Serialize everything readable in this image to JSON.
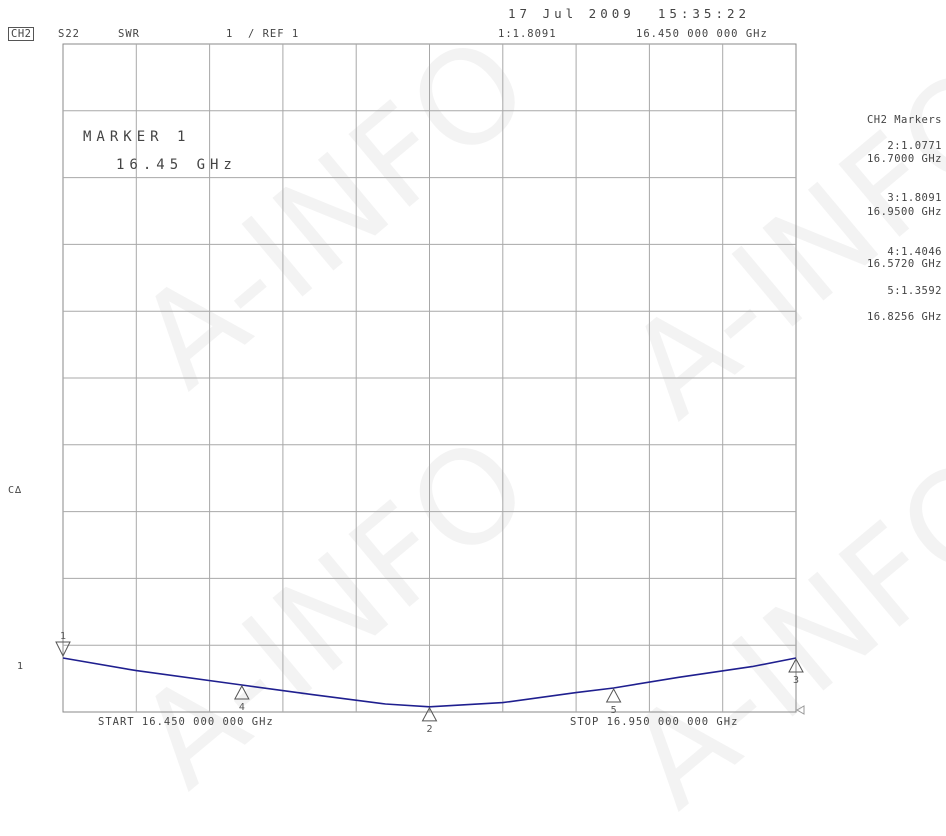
{
  "header": {
    "channel": "CH2",
    "param": "S22",
    "format": "SWR",
    "scale": "1  / REF 1",
    "datetime": "17 Jul 2009  15:35:22",
    "active_marker": "1:1.8091",
    "marker_freq": "16.450 000 000 GHz"
  },
  "annotation": {
    "line1": "MARKER 1",
    "line2": "16.45 GHz"
  },
  "side_labels": {
    "ca": "C∆",
    "ref": "1"
  },
  "markers_panel": {
    "title": "CH2 Markers",
    "entries": [
      {
        "value": "2:1.0771",
        "freq": "16.7000 GHz"
      },
      {
        "value": "3:1.8091",
        "freq": "16.9500 GHz"
      },
      {
        "value": "4:1.4046",
        "freq": "16.5720 GHz"
      },
      {
        "value": "5:1.3592",
        "freq": "16.8256 GHz"
      }
    ]
  },
  "footer": {
    "start": "START 16.450 000 000 GHz",
    "stop": "STOP 16.950 000 000 GHz"
  },
  "watermark": "A-INFO",
  "chart_data": {
    "type": "line",
    "xlim": [
      16.45,
      16.95
    ],
    "ylim": [
      1,
      11
    ],
    "grid": true,
    "trace_color": "#1f1f8f",
    "series": [
      {
        "x": [
          16.45,
          16.5,
          16.572,
          16.62,
          16.67,
          16.7,
          16.75,
          16.8,
          16.8256,
          16.87,
          16.92,
          16.95
        ],
        "y": [
          1.8091,
          1.62,
          1.4046,
          1.26,
          1.12,
          1.0771,
          1.14,
          1.29,
          1.3592,
          1.52,
          1.68,
          1.8091
        ]
      }
    ],
    "markers": [
      {
        "label": "1",
        "x": 16.45,
        "y": 1.8091,
        "dir": "down"
      },
      {
        "label": "2",
        "x": 16.7,
        "y": 1.0771,
        "dir": "up"
      },
      {
        "label": "3",
        "x": 16.95,
        "y": 1.8091,
        "dir": "up"
      },
      {
        "label": "4",
        "x": 16.572,
        "y": 1.4046,
        "dir": "up"
      },
      {
        "label": "5",
        "x": 16.8256,
        "y": 1.3592,
        "dir": "up"
      }
    ]
  }
}
